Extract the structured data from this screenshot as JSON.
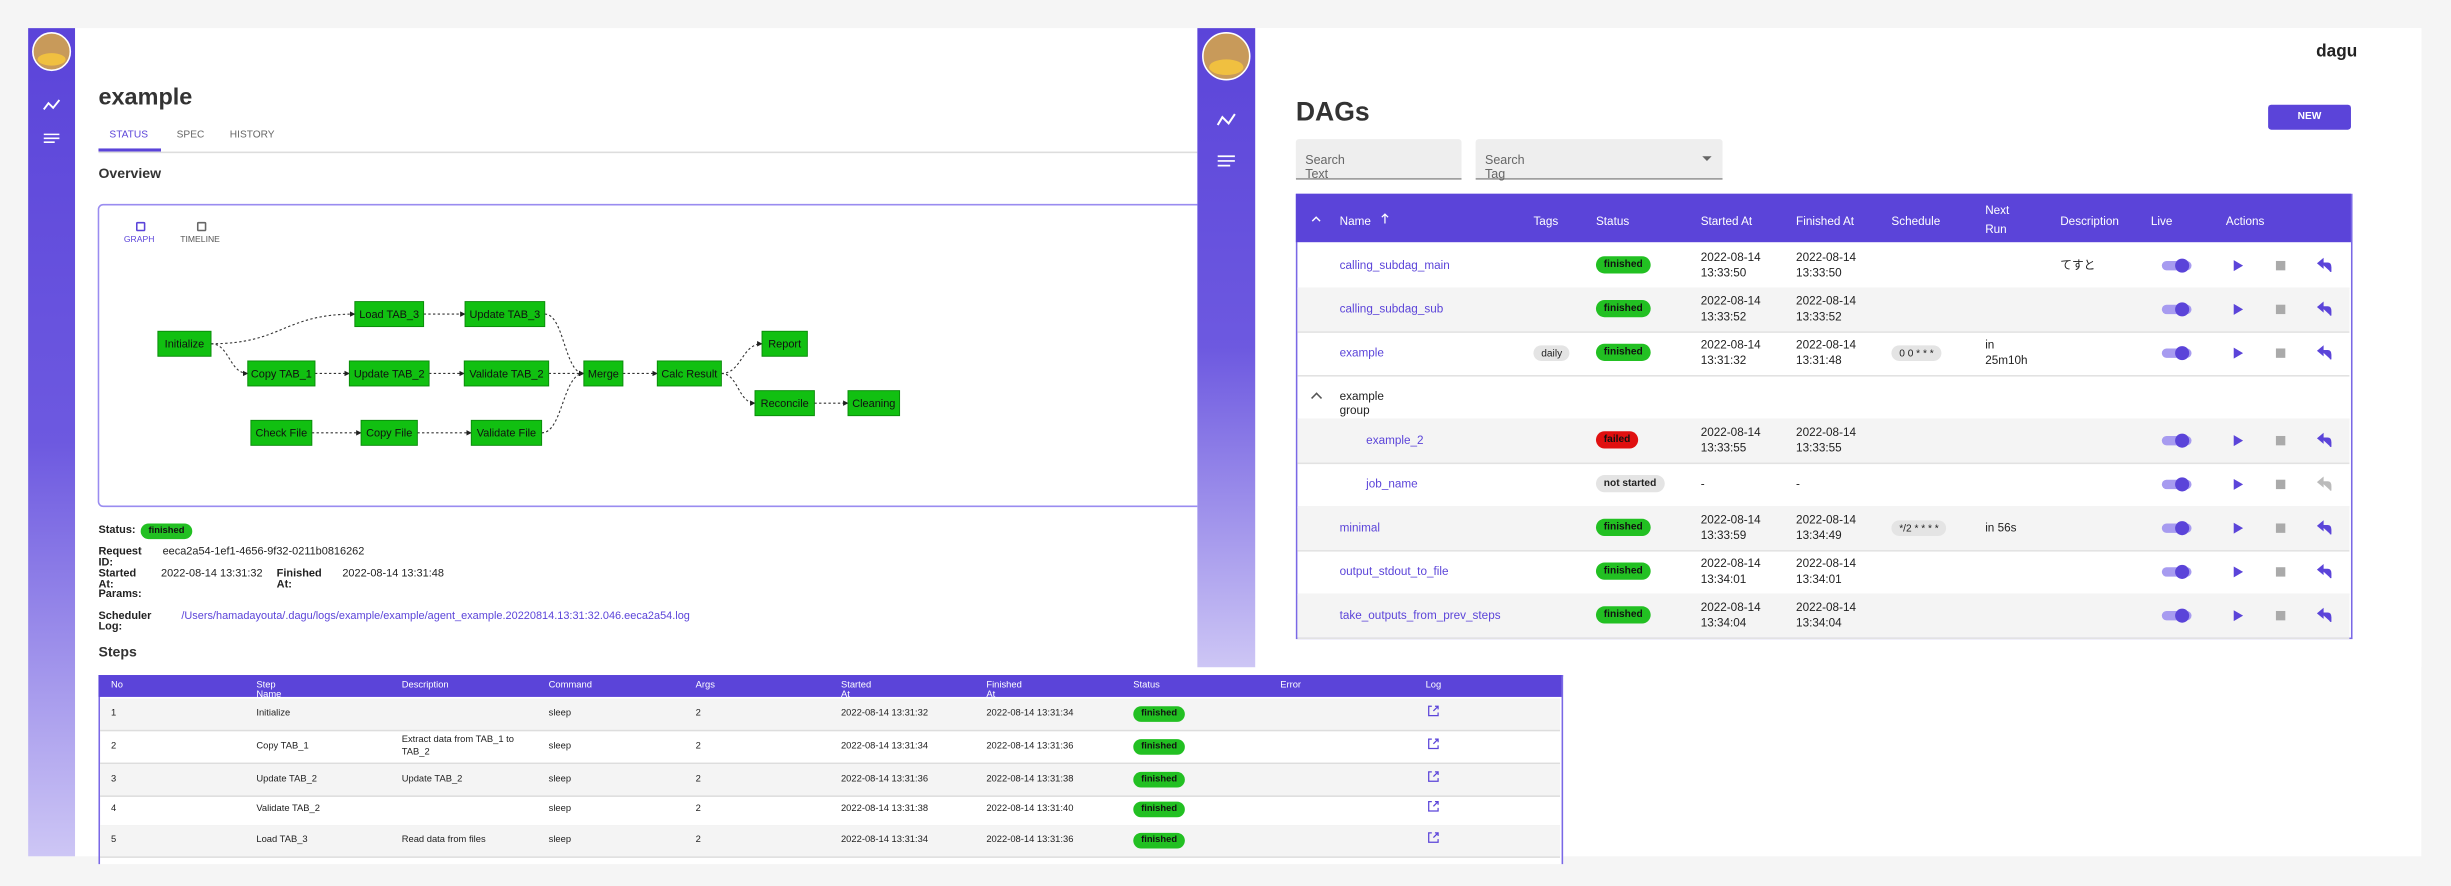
{
  "left": {
    "title": "example",
    "tabs": [
      "STATUS",
      "SPEC",
      "HISTORY"
    ],
    "overview": "Overview",
    "view_tabs": [
      "GRAPH",
      "TIMELINE"
    ],
    "nodes": [
      "Initialize",
      "Load TAB_3",
      "Update TAB_3",
      "Copy TAB_1",
      "Update TAB_2",
      "Validate TAB_2",
      "Merge",
      "Calc Result",
      "Report",
      "Reconcile",
      "Cleaning",
      "Check File",
      "Copy File",
      "Validate File"
    ],
    "info": {
      "status_label": "Status:",
      "status": "finished",
      "request_id_label": "Request ID:",
      "request_id": "eeca2a54-1ef1-4656-9f32-0211b0816262",
      "started_label": "Started At:",
      "started": "2022-08-14 13:31:32",
      "finished_label": "Finished At:",
      "finished": "2022-08-14 13:31:48",
      "params_label": "Params:",
      "log_label": "Scheduler Log:",
      "log": "/Users/hamadayouta/.dagu/logs/example/example/agent_example.20220814.13:31:32.046.eeca2a54.log"
    },
    "steps_title": "Steps",
    "steps": {
      "columns": [
        "No",
        "Step Name",
        "Description",
        "Command",
        "Args",
        "Started At",
        "Finished At",
        "Status",
        "Error",
        "Log"
      ],
      "rows": [
        {
          "no": 1,
          "name": "Initialize",
          "command": "sleep",
          "args": 2,
          "started": "2022-08-14 13:31:32",
          "finished": "2022-08-14 13:31:34",
          "status": "finished"
        },
        {
          "no": 2,
          "name": "Copy TAB_1",
          "description": "Extract data from TAB_1 to TAB_2",
          "command": "sleep",
          "args": 2,
          "started": "2022-08-14 13:31:34",
          "finished": "2022-08-14 13:31:36",
          "status": "finished"
        },
        {
          "no": 3,
          "name": "Update TAB_2",
          "description": "Update TAB_2",
          "command": "sleep",
          "args": 2,
          "started": "2022-08-14 13:31:36",
          "finished": "2022-08-14 13:31:38",
          "status": "finished"
        },
        {
          "no": 4,
          "name": "Validate TAB_2",
          "command": "sleep",
          "args": 2,
          "started": "2022-08-14 13:31:38",
          "finished": "2022-08-14 13:31:40",
          "status": "finished"
        },
        {
          "no": 5,
          "name": "Load TAB_3",
          "description": "Read data from files",
          "command": "sleep",
          "args": 2,
          "started": "2022-08-14 13:31:34",
          "finished": "2022-08-14 13:31:36",
          "status": "finished"
        }
      ]
    }
  },
  "right": {
    "brand": "dagu",
    "title": "DAGs",
    "new_button": "NEW",
    "search_text": "Search Text",
    "search_tag": "Search Tag",
    "columns": [
      "Name",
      "Tags",
      "Status",
      "Started At",
      "Finished At",
      "Schedule",
      "Next Run",
      "Description",
      "Live",
      "Actions"
    ],
    "rows": [
      {
        "name": "calling_subdag_main",
        "status": "finished",
        "started": "2022-08-14 13:33:50",
        "finished": "2022-08-14 13:33:50",
        "description": "てすと"
      },
      {
        "name": "calling_subdag_sub",
        "status": "finished",
        "started": "2022-08-14 13:33:52",
        "finished": "2022-08-14 13:33:52"
      },
      {
        "name": "example",
        "tags": "daily",
        "status": "finished",
        "started": "2022-08-14 13:31:32",
        "finished": "2022-08-14 13:31:48",
        "schedule": "0 0 * * *",
        "next_run": "in 25m10h"
      },
      {
        "group": "example group",
        "children": [
          {
            "name": "example_2",
            "status": "failed",
            "started": "2022-08-14 13:33:55",
            "finished": "2022-08-14 13:33:55"
          },
          {
            "name": "job_name",
            "status": "not started",
            "started": "-",
            "finished": "-"
          }
        ]
      },
      {
        "name": "minimal",
        "status": "finished",
        "started": "2022-08-14 13:33:59",
        "finished": "2022-08-14 13:34:49",
        "schedule": "*/2 * * * *",
        "next_run": "in 56s"
      },
      {
        "name": "output_stdout_to_file",
        "status": "finished",
        "started": "2022-08-14 13:34:01",
        "finished": "2022-08-14 13:34:01"
      },
      {
        "name": "take_outputs_from_prev_steps",
        "status": "finished",
        "started": "2022-08-14 13:34:04",
        "finished": "2022-08-14 13:34:04"
      }
    ]
  }
}
